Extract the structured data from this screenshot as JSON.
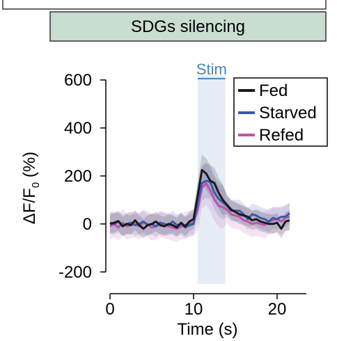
{
  "panel": {
    "title": "SDGs silencing",
    "header_bg": "#c9ddd0",
    "header_border": "#333333"
  },
  "chart_data": {
    "type": "line",
    "title": "",
    "xlabel": "Time (s)",
    "ylabel_main": "ΔF/F",
    "ylabel_sub": "0",
    "ylabel_unit": " (%)",
    "xlim": [
      -0.5,
      23.5
    ],
    "ylim": [
      -250,
      620
    ],
    "xticks": [
      0,
      10,
      20
    ],
    "yticks": [
      600,
      400,
      200,
      0,
      -200
    ],
    "stim": {
      "label": "Stim",
      "start": 10.5,
      "end": 13.8,
      "color": "#4a86b8",
      "shade": "#e6edf7"
    },
    "legend": {
      "position": "top-right"
    },
    "x": [
      0,
      0.5,
      1,
      1.5,
      2,
      2.5,
      3,
      3.5,
      4,
      4.5,
      5,
      5.5,
      6,
      6.5,
      7,
      7.5,
      8,
      8.5,
      9,
      9.5,
      10,
      10.5,
      11,
      11.5,
      12,
      12.5,
      13,
      13.5,
      14,
      14.5,
      15,
      15.5,
      16,
      16.5,
      17,
      17.5,
      18,
      18.5,
      19,
      19.5,
      20,
      20.5,
      21,
      21.5
    ],
    "series": [
      {
        "name": "Fed",
        "color": "#1a1a1a",
        "values": [
          0,
          5,
          12,
          -10,
          0,
          -5,
          15,
          -5,
          -20,
          -5,
          0,
          10,
          -5,
          -10,
          0,
          -5,
          -15,
          5,
          -10,
          10,
          20,
          120,
          225,
          210,
          180,
          170,
          130,
          100,
          80,
          60,
          50,
          40,
          35,
          30,
          15,
          20,
          10,
          5,
          0,
          0,
          5,
          -20,
          10,
          15
        ],
        "band": 40
      },
      {
        "name": "Starved",
        "color": "#3b5aa6",
        "values": [
          5,
          0,
          10,
          -5,
          0,
          5,
          -5,
          0,
          10,
          -5,
          0,
          -10,
          5,
          0,
          -5,
          10,
          -5,
          0,
          -15,
          -5,
          0,
          90,
          170,
          180,
          175,
          130,
          105,
          90,
          75,
          55,
          55,
          55,
          40,
          20,
          40,
          35,
          25,
          20,
          10,
          25,
          20,
          30,
          30,
          45
        ],
        "band": 45
      },
      {
        "name": "Refed",
        "color": "#c153b0",
        "values": [
          -10,
          0,
          -15,
          5,
          -10,
          -5,
          0,
          -10,
          5,
          0,
          -15,
          -10,
          0,
          -5,
          -10,
          -15,
          -20,
          -10,
          -5,
          0,
          5,
          60,
          150,
          170,
          140,
          100,
          75,
          70,
          60,
          40,
          35,
          30,
          15,
          10,
          0,
          5,
          0,
          -5,
          10,
          15,
          20,
          10,
          25,
          30
        ],
        "band": 55
      }
    ]
  }
}
